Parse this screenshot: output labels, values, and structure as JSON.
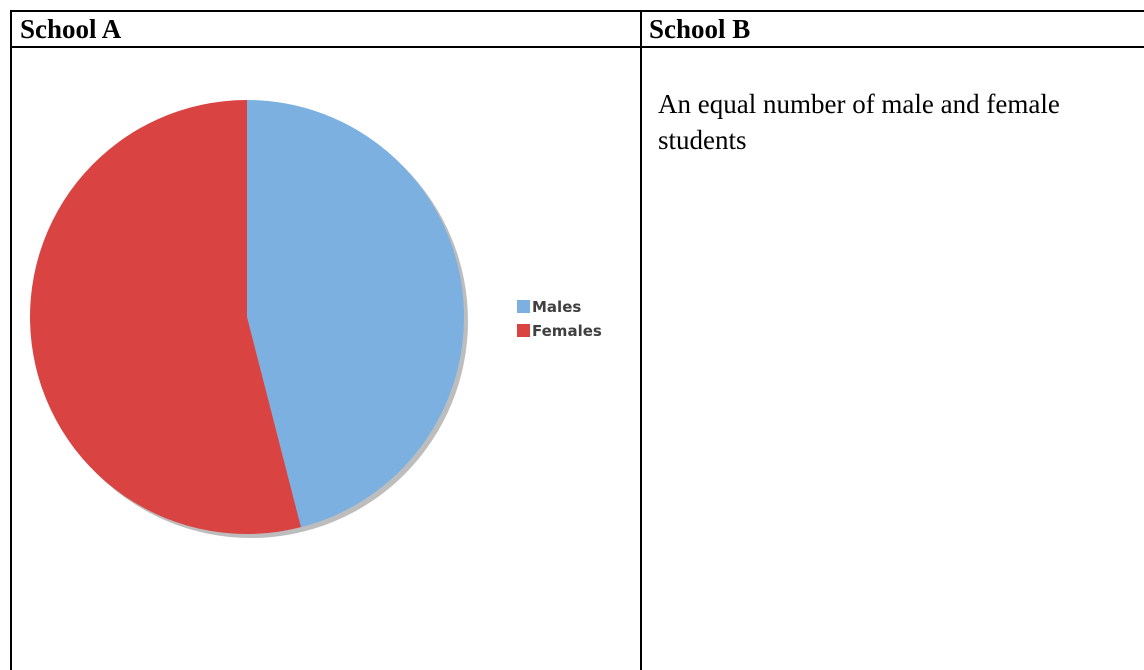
{
  "table": {
    "headers": [
      "School A",
      "School B"
    ],
    "school_b_text": "An equal number of male and female students"
  },
  "chart_data": {
    "type": "pie",
    "categories": [
      "Males",
      "Females"
    ],
    "values": [
      46,
      54
    ],
    "colors": [
      "#7bb0e0",
      "#d94341"
    ],
    "start_angle_deg": 0,
    "direction": "clockwise",
    "legend_position": "right",
    "title": ""
  }
}
